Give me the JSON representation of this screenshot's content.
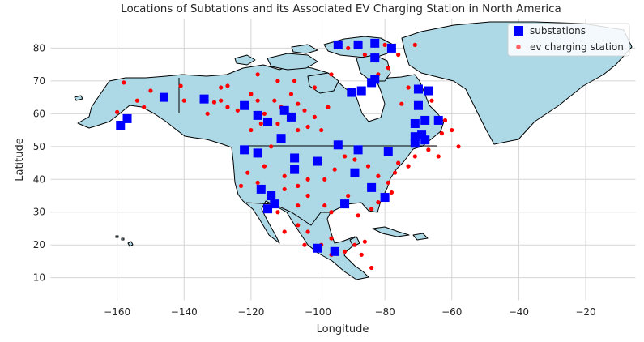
{
  "chart_data": {
    "type": "scatter",
    "title": "Locations of Subtations and its Associated EV Charging Station in North America",
    "xlabel": "Longitude",
    "ylabel": "Latitude",
    "xlim": [
      -180,
      -5
    ],
    "ylim": [
      3,
      89
    ],
    "xticks": [
      -160,
      -140,
      -120,
      -100,
      -80,
      -60,
      -40,
      -20
    ],
    "yticks": [
      10,
      20,
      30,
      40,
      50,
      60,
      70,
      80
    ],
    "grid": true,
    "legend_position": "top-right",
    "basemap": "North America country outlines (Canada, USA, Mexico, Central America, Greenland, Caribbean)",
    "colors": {
      "land": "#add8e6",
      "land_outline": "#000000",
      "grid": "#d5d5d5",
      "substation": "#0000ff",
      "ev_station": "#ff0000"
    },
    "series": [
      {
        "name": "substations",
        "marker": "square",
        "color": "#0000ff",
        "points": [
          [
            -159,
            56.5
          ],
          [
            -157,
            58.5
          ],
          [
            -146,
            65
          ],
          [
            -134,
            64.5
          ],
          [
            -122,
            62.5
          ],
          [
            -118,
            59.5
          ],
          [
            -115,
            57.5
          ],
          [
            -110,
            61
          ],
          [
            -108,
            59
          ],
          [
            -111,
            52.5
          ],
          [
            -122,
            49
          ],
          [
            -118,
            48
          ],
          [
            -107,
            46.5
          ],
          [
            -107,
            43
          ],
          [
            -100,
            45.5
          ],
          [
            -94,
            50.5
          ],
          [
            -88,
            49
          ],
          [
            -89,
            42
          ],
          [
            -117,
            37
          ],
          [
            -114,
            35
          ],
          [
            -113,
            32.5
          ],
          [
            -115,
            31
          ],
          [
            -92,
            32.5
          ],
          [
            -84,
            37.5
          ],
          [
            -80,
            34.5
          ],
          [
            -79,
            48.5
          ],
          [
            -100,
            19
          ],
          [
            -95,
            18
          ],
          [
            -94,
            81
          ],
          [
            -88,
            81
          ],
          [
            -83,
            81.5
          ],
          [
            -78,
            80
          ],
          [
            -83,
            77
          ],
          [
            -83,
            70.5
          ],
          [
            -84,
            69.5
          ],
          [
            -87,
            67
          ],
          [
            -90,
            66.5
          ],
          [
            -70,
            67.5
          ],
          [
            -67,
            67
          ],
          [
            -70,
            62.5
          ],
          [
            -71,
            57
          ],
          [
            -68,
            58
          ],
          [
            -64,
            58
          ],
          [
            -69,
            53.5
          ],
          [
            -68,
            52
          ],
          [
            -71,
            51
          ],
          [
            -71,
            53
          ]
        ]
      },
      {
        "name": "ev charging station",
        "marker": "circle",
        "color": "#ff0000",
        "points": [
          [
            -160,
            60.5
          ],
          [
            -158,
            69.5
          ],
          [
            -154,
            64
          ],
          [
            -150,
            67
          ],
          [
            -152,
            62
          ],
          [
            -141,
            68.5
          ],
          [
            -140,
            64
          ],
          [
            -133,
            60
          ],
          [
            -131,
            63.5
          ],
          [
            -129,
            68
          ],
          [
            -127,
            68.5
          ],
          [
            -129,
            64
          ],
          [
            -127,
            62
          ],
          [
            -124,
            61
          ],
          [
            -120,
            66
          ],
          [
            -118,
            64
          ],
          [
            -116,
            60
          ],
          [
            -113,
            64
          ],
          [
            -111,
            62
          ],
          [
            -108,
            66
          ],
          [
            -106,
            63
          ],
          [
            -104,
            61
          ],
          [
            -101,
            59
          ],
          [
            -97,
            62
          ],
          [
            -103,
            56
          ],
          [
            -99,
            55
          ],
          [
            -106,
            55
          ],
          [
            -112,
            57
          ],
          [
            -117,
            57
          ],
          [
            -120,
            55
          ],
          [
            -114,
            50
          ],
          [
            -116,
            44
          ],
          [
            -121,
            42
          ],
          [
            -123,
            38
          ],
          [
            -118,
            39
          ],
          [
            -110,
            41
          ],
          [
            -106,
            38
          ],
          [
            -103,
            40
          ],
          [
            -98,
            40
          ],
          [
            -95,
            43
          ],
          [
            -92,
            47
          ],
          [
            -89,
            46
          ],
          [
            -85,
            44
          ],
          [
            -82,
            41
          ],
          [
            -79,
            39
          ],
          [
            -77,
            42
          ],
          [
            -76,
            45
          ],
          [
            -73,
            44
          ],
          [
            -71,
            47
          ],
          [
            -78,
            36
          ],
          [
            -82,
            33
          ],
          [
            -84,
            31
          ],
          [
            -88,
            29
          ],
          [
            -91,
            35
          ],
          [
            -96,
            30
          ],
          [
            -98,
            32
          ],
          [
            -103,
            35
          ],
          [
            -106,
            32
          ],
          [
            -110,
            37
          ],
          [
            -112,
            30
          ],
          [
            -110,
            24
          ],
          [
            -106,
            26
          ],
          [
            -103,
            24
          ],
          [
            -104,
            20
          ],
          [
            -99,
            20
          ],
          [
            -96,
            17
          ],
          [
            -89,
            20
          ],
          [
            -86,
            21
          ],
          [
            -87,
            17
          ],
          [
            -84,
            13
          ],
          [
            -96,
            22
          ],
          [
            -92,
            18
          ],
          [
            -75,
            63
          ],
          [
            -73,
            68
          ],
          [
            -66,
            64
          ],
          [
            -62,
            58
          ],
          [
            -60,
            55
          ],
          [
            -63,
            54
          ],
          [
            -58,
            50
          ],
          [
            -64,
            47
          ],
          [
            -67,
            49
          ],
          [
            -91,
            80
          ],
          [
            -86,
            78
          ],
          [
            -80,
            81
          ],
          [
            -71,
            81
          ],
          [
            -76,
            78
          ],
          [
            -79,
            74
          ],
          [
            -82,
            72
          ],
          [
            -96,
            72
          ],
          [
            -101,
            68
          ],
          [
            -107,
            70
          ],
          [
            -112,
            70
          ],
          [
            -118,
            72
          ]
        ]
      }
    ]
  }
}
